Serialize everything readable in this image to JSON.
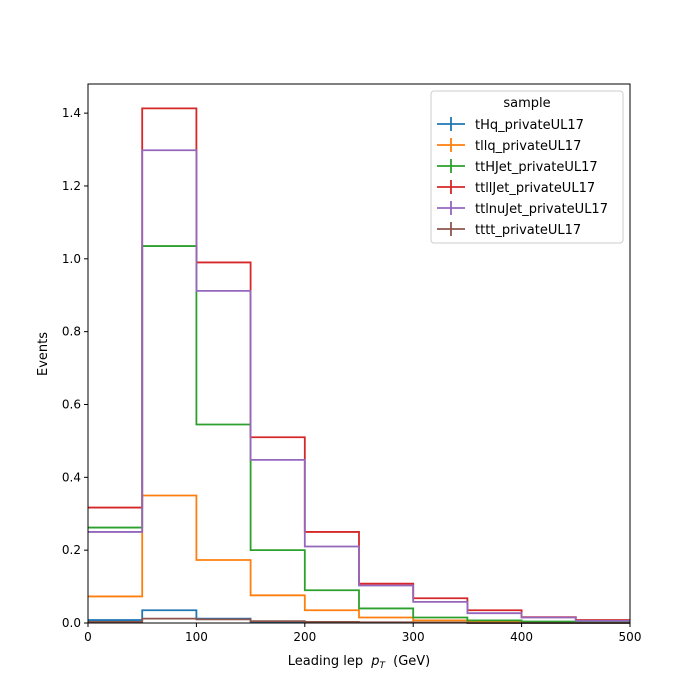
{
  "chart_data": {
    "type": "step-histogram",
    "xlabel": "Leading lep",
    "xlabel_sub": "T",
    "xlabel_unit": "(GeV)",
    "xlabel_p": "p",
    "ylabel": "Events",
    "xlim": [
      0,
      500
    ],
    "ylim": [
      0,
      1.48
    ],
    "xticks": [
      0,
      100,
      200,
      300,
      400,
      500
    ],
    "yticks": [
      0.0,
      0.2,
      0.4,
      0.6,
      0.8,
      1.0,
      1.2,
      1.4
    ],
    "bin_edges": [
      0,
      50,
      100,
      150,
      200,
      250,
      300,
      350,
      400,
      450,
      500
    ],
    "grid": false,
    "legend_title": "sample",
    "legend_position": "top-right",
    "series": [
      {
        "name": "tHq_privateUL17",
        "color": "#1f77b4",
        "values": [
          0.008,
          0.035,
          0.012,
          0.004,
          0.002,
          0.001,
          0.001,
          0.0,
          0.0,
          0.0
        ]
      },
      {
        "name": "tllq_privateUL17",
        "color": "#ff7f0e",
        "values": [
          0.073,
          0.35,
          0.173,
          0.076,
          0.035,
          0.015,
          0.007,
          0.003,
          0.002,
          0.001
        ]
      },
      {
        "name": "ttHJet_privateUL17",
        "color": "#2ca02c",
        "values": [
          0.262,
          1.035,
          0.545,
          0.2,
          0.09,
          0.04,
          0.015,
          0.007,
          0.004,
          0.002
        ]
      },
      {
        "name": "ttllJet_privateUL17",
        "color": "#d62728",
        "values": [
          0.317,
          1.413,
          0.99,
          0.51,
          0.25,
          0.108,
          0.068,
          0.035,
          0.016,
          0.008
        ]
      },
      {
        "name": "ttlnuJet_privateUL17",
        "color": "#9467bd",
        "values": [
          0.25,
          1.298,
          0.912,
          0.448,
          0.21,
          0.103,
          0.058,
          0.027,
          0.015,
          0.006
        ]
      },
      {
        "name": "tttt_privateUL17",
        "color": "#8c564b",
        "values": [
          0.003,
          0.012,
          0.01,
          0.005,
          0.003,
          0.002,
          0.001,
          0.0,
          0.0,
          0.0
        ]
      }
    ]
  }
}
